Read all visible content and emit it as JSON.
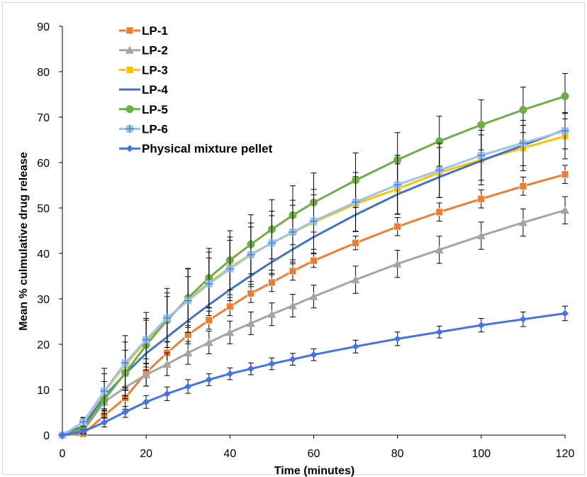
{
  "chart_data": {
    "type": "line",
    "title": "",
    "xlabel": "Time (minutes)",
    "ylabel": "Mean % culmulative drug release",
    "xlim": [
      0,
      120
    ],
    "ylim": [
      0,
      90
    ],
    "x_ticks": [
      0,
      20,
      40,
      60,
      80,
      100,
      120
    ],
    "y_ticks": [
      0,
      10,
      20,
      30,
      40,
      50,
      60,
      70,
      80,
      90
    ],
    "grid": false,
    "legend_position": "top-left",
    "x": [
      0,
      5,
      10,
      15,
      20,
      25,
      30,
      35,
      40,
      45,
      50,
      55,
      60,
      70,
      80,
      90,
      100,
      110,
      120
    ],
    "series": [
      {
        "name": "LP-1",
        "color": "#ED7D31",
        "marker": "square",
        "values": [
          0,
          0.3,
          4.3,
          8.2,
          13.8,
          18.1,
          22.1,
          25.3,
          28.3,
          31.2,
          33.6,
          36.1,
          38.4,
          42.3,
          45.9,
          49.1,
          52.0,
          54.8,
          57.4
        ],
        "errors": [
          0.3,
          0.5,
          1.5,
          2.5,
          3,
          2.5,
          2,
          2,
          2,
          2,
          2,
          2,
          1.5,
          1.5,
          2,
          2,
          2,
          2,
          2
        ]
      },
      {
        "name": "LP-2",
        "color": "#A5A5A5",
        "marker": "triangle",
        "values": [
          0,
          1.0,
          7.3,
          10.5,
          13.3,
          15.6,
          18.1,
          20.4,
          22.6,
          24.6,
          26.6,
          28.5,
          30.5,
          34.2,
          37.7,
          40.8,
          43.9,
          46.8,
          49.5
        ],
        "errors": [
          0.3,
          0.8,
          2,
          2.5,
          2.5,
          2.5,
          2.5,
          2.5,
          2.5,
          2.5,
          2.5,
          2.5,
          2.5,
          3,
          3,
          3,
          3,
          3,
          3
        ]
      },
      {
        "name": "LP-3",
        "color": "#FFC000",
        "marker": "square",
        "values": [
          0,
          2.8,
          9.5,
          15.5,
          20.7,
          25.5,
          29.9,
          33.5,
          36.9,
          39.8,
          42.3,
          44.6,
          46.9,
          50.9,
          54.2,
          57.8,
          60.6,
          63.2,
          65.8
        ],
        "errors": [
          0.3,
          1,
          4,
          5,
          5,
          5,
          5,
          5.5,
          6,
          6,
          6,
          6,
          6,
          6,
          5.5,
          5.5,
          5.5,
          5,
          5
        ]
      },
      {
        "name": "LP-4",
        "color": "#4472C4",
        "marker": "none",
        "values": [
          0,
          2.0,
          8.5,
          13.5,
          18.0,
          21.6,
          25.2,
          28.7,
          32.0,
          35.1,
          38.1,
          40.9,
          43.6,
          48.5,
          53.0,
          56.8,
          60.4,
          63.8,
          67.2
        ],
        "errors": [
          0,
          0,
          0,
          0,
          0,
          0,
          0,
          0,
          0,
          0,
          0,
          0,
          0,
          0,
          0,
          0,
          0,
          0,
          0
        ]
      },
      {
        "name": "LP-5",
        "color": "#70AD47",
        "marker": "circle",
        "values": [
          0,
          1.5,
          7.8,
          13.7,
          19.8,
          25.3,
          30.2,
          34.6,
          38.5,
          42.0,
          45.3,
          48.4,
          51.2,
          56.1,
          60.6,
          64.7,
          68.3,
          71.6,
          74.6
        ],
        "errors": [
          0.3,
          1,
          4,
          5,
          5.5,
          6,
          6.5,
          6.5,
          6.5,
          6.5,
          6.5,
          6.5,
          6.5,
          6,
          6,
          5.5,
          5.5,
          5,
          5
        ]
      },
      {
        "name": "LP-6",
        "color": "#9DC3E6",
        "marker": "plus-square",
        "values": [
          0,
          2.9,
          9.7,
          15.9,
          21.0,
          25.8,
          29.6,
          33.3,
          36.6,
          39.7,
          42.3,
          44.7,
          47.1,
          51.3,
          55.1,
          58.3,
          61.6,
          64.3,
          67.0
        ],
        "errors": [
          0.3,
          1,
          5,
          6,
          6,
          6.5,
          7,
          7,
          7,
          7,
          7,
          7,
          7,
          6.5,
          6.5,
          6,
          5.5,
          5,
          4
        ]
      },
      {
        "name": "Physical mixture pellet",
        "color": "#4472E8",
        "marker": "diamond",
        "values": [
          0,
          0.8,
          2.8,
          5.1,
          7.3,
          9.1,
          10.7,
          12.2,
          13.5,
          14.6,
          15.7,
          16.7,
          17.7,
          19.5,
          21.2,
          22.7,
          24.2,
          25.5,
          26.8
        ],
        "errors": [
          0.2,
          0.5,
          1,
          1.2,
          1.4,
          1.5,
          1.5,
          1.3,
          1.3,
          1.3,
          1.3,
          1.3,
          1.3,
          1.4,
          1.5,
          1.3,
          1.5,
          1.6,
          1.6
        ]
      }
    ]
  }
}
